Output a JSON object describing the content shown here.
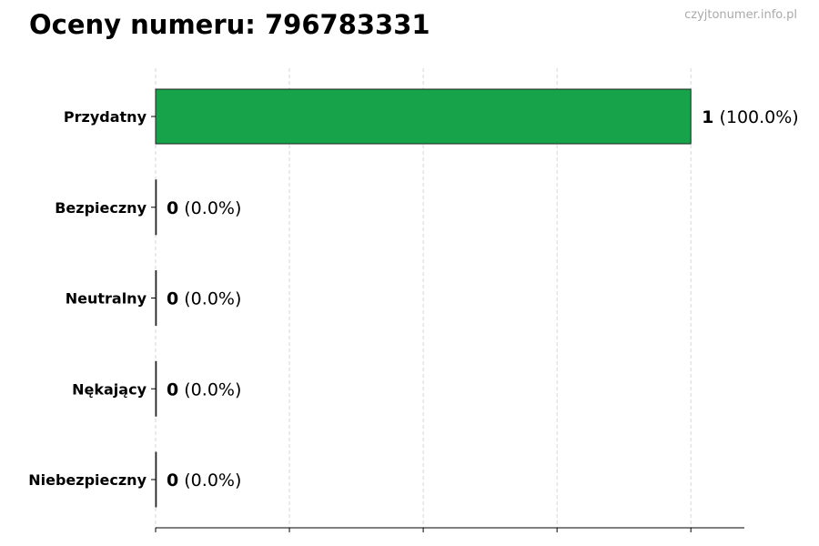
{
  "chart_data": {
    "type": "bar",
    "orientation": "horizontal",
    "title": "Oceny numeru: 796783331",
    "watermark": "czyjtonumer.info.pl",
    "categories": [
      "Przydatny",
      "Bezpieczny",
      "Neutralny",
      "Nękający",
      "Niebezpieczny"
    ],
    "values": [
      1,
      0,
      0,
      0,
      0
    ],
    "percent_labels": [
      "(100.0%)",
      "(0.0%)",
      "(0.0%)",
      "(0.0%)",
      "(0.0%)"
    ],
    "value_labels": [
      "1",
      "0",
      "0",
      "0",
      "0"
    ],
    "xlim": [
      0,
      1.1
    ],
    "xticks": [
      0,
      0.25,
      0.5,
      0.75,
      1.0
    ],
    "xtick_labels_shown": false,
    "grid": "vertical dashed",
    "colors": {
      "bar": "#17a34a",
      "edge": "#222222",
      "grid": "#cccccc"
    },
    "xlabel": "",
    "ylabel": ""
  }
}
